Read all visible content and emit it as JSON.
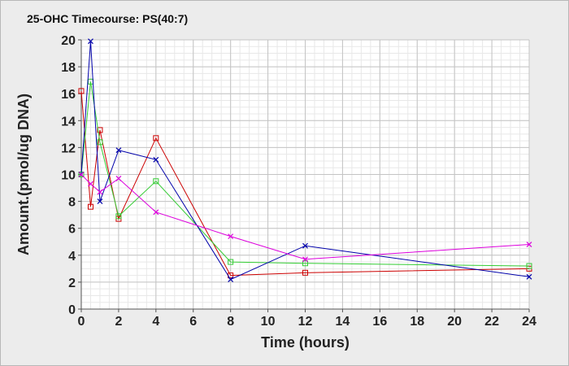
{
  "chart_data": {
    "type": "line",
    "title": "25-OHC Timecourse: PS(40:7)",
    "xlabel": "Time (hours)",
    "ylabel": "Amount.(pmol/ug DNA)",
    "xlim": [
      0,
      24
    ],
    "ylim": [
      0,
      20
    ],
    "xticks": [
      0,
      2,
      4,
      6,
      8,
      10,
      12,
      14,
      16,
      18,
      20,
      22,
      24
    ],
    "yticks": [
      0,
      2,
      4,
      6,
      8,
      10,
      12,
      14,
      16,
      18,
      20
    ],
    "grid": true,
    "series": [
      {
        "color": "#cc0000",
        "marker": "square",
        "x": [
          0,
          0.5,
          1,
          2,
          4,
          8,
          12,
          24
        ],
        "y": [
          16.2,
          7.6,
          13.3,
          6.7,
          12.7,
          2.5,
          2.7,
          3.0
        ]
      },
      {
        "color": "#33cc33",
        "marker": "square",
        "x": [
          0,
          0.5,
          1,
          2,
          4,
          8,
          12,
          24
        ],
        "y": [
          10.0,
          16.9,
          12.4,
          6.9,
          9.5,
          3.5,
          3.4,
          3.2
        ]
      },
      {
        "color": "#0000aa",
        "marker": "x",
        "x": [
          0,
          0.5,
          1,
          2,
          4,
          8,
          12,
          24
        ],
        "y": [
          10.0,
          19.9,
          8.0,
          11.8,
          11.1,
          2.2,
          4.7,
          2.4
        ]
      },
      {
        "color": "#dd00dd",
        "marker": "x",
        "x": [
          0,
          0.5,
          1,
          2,
          4,
          8,
          12,
          24
        ],
        "y": [
          10.0,
          9.3,
          8.7,
          9.7,
          7.2,
          5.4,
          3.7,
          4.8
        ]
      }
    ]
  }
}
